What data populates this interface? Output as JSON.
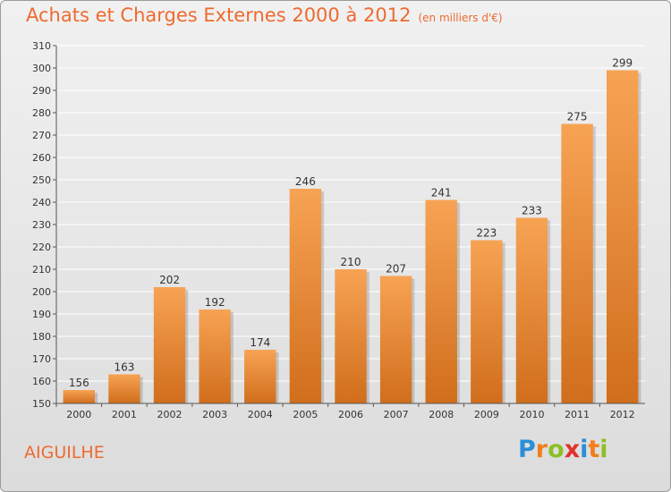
{
  "chart_data": {
    "type": "bar",
    "title": "Achats et Charges Externes 2000 à 2012",
    "subtitle": "(en milliers d'€)",
    "categories": [
      "2000",
      "2001",
      "2002",
      "2003",
      "2004",
      "2005",
      "2006",
      "2007",
      "2008",
      "2009",
      "2010",
      "2011",
      "2012"
    ],
    "values": [
      156,
      163,
      202,
      192,
      174,
      246,
      210,
      207,
      241,
      223,
      233,
      275,
      299
    ],
    "ylim": [
      150,
      310
    ],
    "yticks": [
      150,
      160,
      170,
      180,
      190,
      200,
      210,
      220,
      230,
      240,
      250,
      260,
      270,
      280,
      290,
      300,
      310
    ],
    "grid": true,
    "bar_color_top": "#f7a354",
    "bar_color_bottom": "#d06e1c"
  },
  "place_name": "AIGUILHE",
  "logo": {
    "letters": [
      "P",
      "r",
      "o",
      "x",
      "i",
      "t",
      "i"
    ],
    "colors": [
      "#2b8fd6",
      "#f07f1a",
      "#8cbf26",
      "#e0312b",
      "#2b8fd6",
      "#f07f1a",
      "#8cbf26"
    ]
  },
  "colors": {
    "accent": "#ee6a2f",
    "grid": "#ffffff",
    "background_top": "#f1f1f1",
    "background_bottom": "#dcdcdc"
  }
}
